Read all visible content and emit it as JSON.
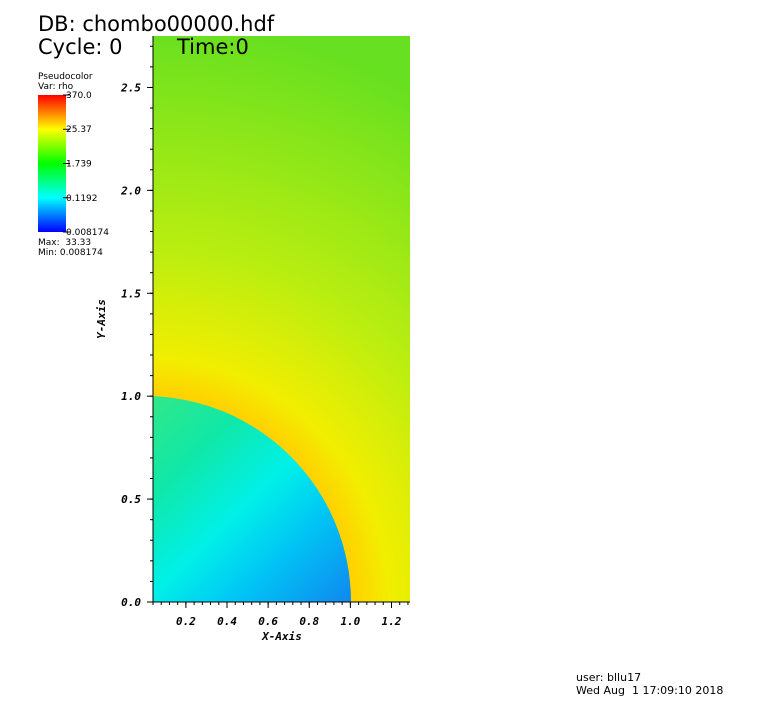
{
  "chart_data": {
    "type": "pseudocolor",
    "db_label": "DB: chombo00000.hdf",
    "cycle_label": "Cycle: 0",
    "time_label": "Time:0",
    "xlabel": "X-Axis",
    "ylabel": "Y-Axis",
    "xlim": [
      0.04,
      1.29
    ],
    "ylim": [
      0,
      2.75
    ],
    "xticks": [
      0.2,
      0.4,
      0.6,
      0.8,
      {
        "value": 1.0,
        "label": "1.0"
      },
      1.2
    ],
    "yticks": [
      {
        "value": 0,
        "label": "0.0"
      },
      0.5,
      {
        "value": 1.0,
        "label": "1.0"
      },
      1.5,
      {
        "value": 2.0,
        "label": "2.0"
      },
      2.5
    ],
    "legend": {
      "title": "Pseudocolor",
      "variable": "Var: rho",
      "scale": "log",
      "clim": [
        0.008174,
        370
      ],
      "ticks": [
        {
          "value": 370,
          "label": "370.0"
        },
        25.37,
        1.739,
        0.1192,
        0.008174
      ],
      "max_label": "Max:  33.33",
      "min_label": "Min: 0.008174"
    },
    "user": "user: bllu17",
    "date": "Wed Aug  1 17:09:10 2018"
  }
}
